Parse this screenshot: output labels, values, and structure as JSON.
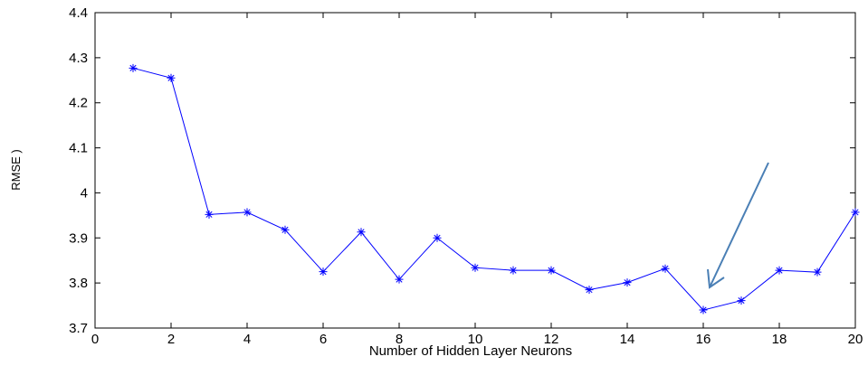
{
  "chart_data": {
    "type": "line",
    "x_label": "Number of Hidden Layer Neurons",
    "y_label": "RMSE )",
    "x": [
      1,
      2,
      3,
      4,
      5,
      6,
      7,
      8,
      9,
      10,
      11,
      12,
      13,
      14,
      15,
      16,
      17,
      18,
      19,
      20
    ],
    "series": [
      {
        "color": "#0000ff",
        "values": [
          4.277,
          4.255,
          3.952,
          3.957,
          3.918,
          3.825,
          3.913,
          3.808,
          3.9,
          3.834,
          3.828,
          3.828,
          3.785,
          3.801,
          3.832,
          3.74,
          3.761,
          3.828,
          3.824,
          3.957
        ]
      }
    ],
    "xlim": [
      0,
      20
    ],
    "xticks": [
      0,
      2,
      4,
      6,
      8,
      10,
      12,
      14,
      16,
      18,
      20
    ],
    "ylim": [
      3.7,
      4.4
    ],
    "yticks": [
      3.7,
      3.8,
      3.9,
      4,
      4.1,
      4.2,
      4.3,
      4.4
    ],
    "grid": false
  }
}
